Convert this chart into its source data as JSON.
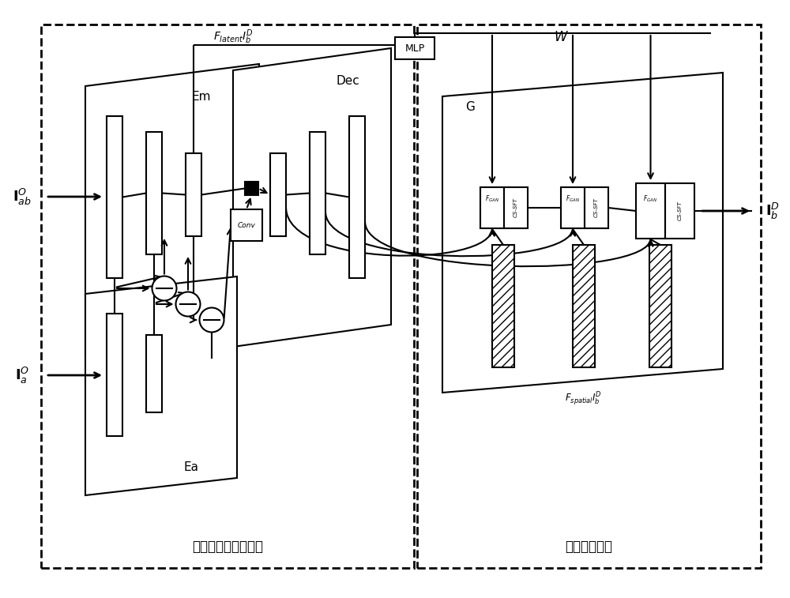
{
  "fig_width": 10.0,
  "fig_height": 7.57,
  "bg_color": "#ffffff",
  "left_module_label": "编解码特征分离模块",
  "right_module_label": "增强生成模块",
  "Em_label": "Em",
  "Dec_label": "Dec",
  "Ea_label": "Ea",
  "G_label": "G",
  "MLP_label": "MLP",
  "Conv_label": "Conv",
  "I_ab_label": "$\\mathbf{I}_{ab}^{O}$",
  "I_a_label": "$\\mathbf{I}_{a}^{O}$",
  "I_b_label": "$\\mathbf{I}_{b}^{D}$"
}
